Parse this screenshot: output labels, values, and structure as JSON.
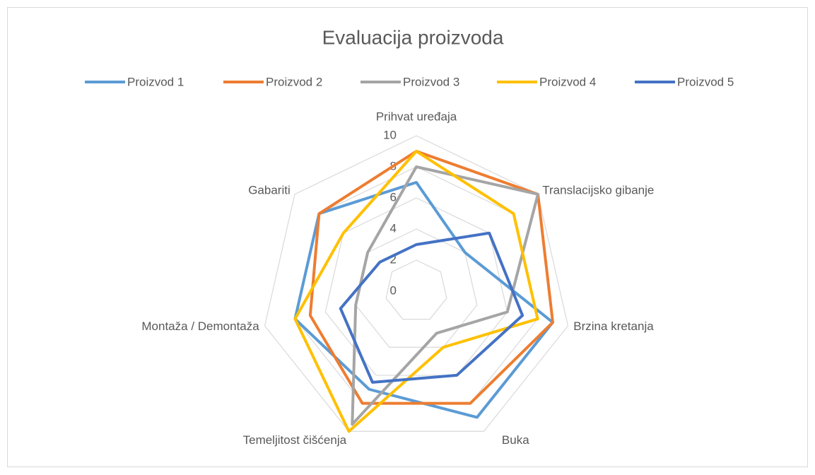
{
  "chart_data": {
    "type": "radar",
    "title": "Evaluacija proizvoda",
    "categories": [
      "Prihvat uređaja",
      "Translacijsko gibanje",
      "Brzina kretanja",
      "Buka",
      "Temeljitost čišćenja",
      "Montaža / Demontaža",
      "Gabariti"
    ],
    "series": [
      {
        "name": "Proizvod 1",
        "color": "#5b9bd5",
        "values": [
          7,
          4,
          9,
          9,
          7,
          8,
          8
        ]
      },
      {
        "name": "Proizvod 2",
        "color": "#ed7d31",
        "values": [
          9,
          10,
          9,
          8,
          8,
          7,
          8
        ]
      },
      {
        "name": "Proizvod 3",
        "color": "#a5a5a5",
        "values": [
          8,
          10,
          6,
          3,
          9.5,
          4,
          4
        ]
      },
      {
        "name": "Proizvod 4",
        "color": "#ffc000",
        "values": [
          9,
          8,
          8,
          4,
          10,
          8,
          6
        ]
      },
      {
        "name": "Proizvod 5",
        "color": "#4472c4",
        "values": [
          3,
          6,
          7,
          6,
          6.5,
          5,
          3
        ]
      }
    ],
    "ylim": [
      0,
      10
    ],
    "yticks": [
      0,
      2,
      4,
      6,
      8,
      10
    ],
    "grid": true,
    "legend": "top"
  }
}
